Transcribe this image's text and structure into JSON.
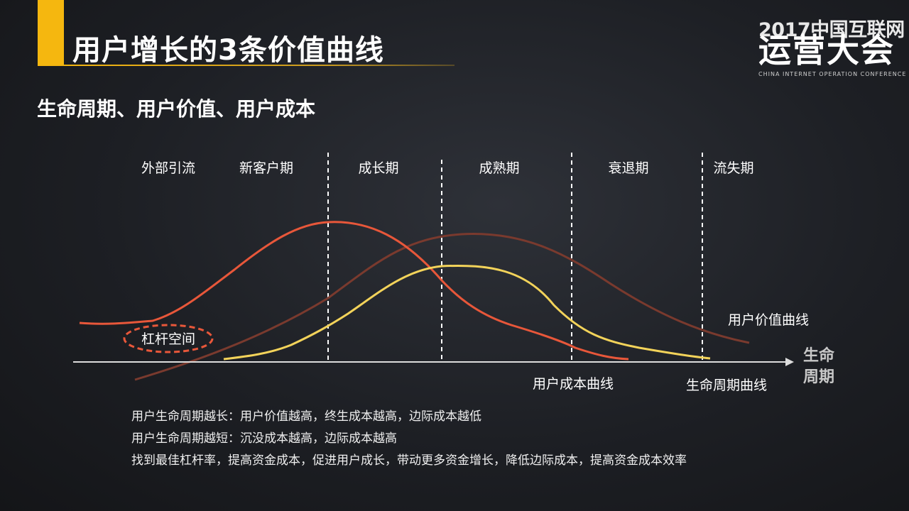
{
  "header": {
    "title": "用户增长的3条价值曲线",
    "accent_color": "#f5b70f"
  },
  "logo": {
    "line1": "2017中国互联网",
    "line2": "运营大会",
    "line3": "CHINA INTERNET OPERATION CONFERENCE"
  },
  "subtitle": "生命周期、用户价值、用户成本",
  "diagram": {
    "phases": [
      "外部引流",
      "新客户期",
      "成长期",
      "成熟期",
      "衰退期",
      "流失期"
    ],
    "axis_label_line1": "生命",
    "axis_label_line2": "周期",
    "leverage_label": "杠杆空间",
    "curve_labels": {
      "value": "用户价值曲线",
      "cost": "用户成本曲线",
      "lifecycle": "生命周期曲线"
    },
    "colors": {
      "cost_curve": "#e8573a",
      "value_curve": "#7a3a2e",
      "lifecycle_curve": "#f3d35a",
      "leverage_ellipse": "#e8573a"
    }
  },
  "notes": [
    "用户生命周期越长：用户价值越高，终生成本越高，边际成本越低",
    "用户生命周期越短：沉没成本越高，边际成本越高",
    "找到最佳杠杆率，提高资金成本，促进用户成长，带动更多资金增长，降低边际成本，提高资金成本效率"
  ]
}
